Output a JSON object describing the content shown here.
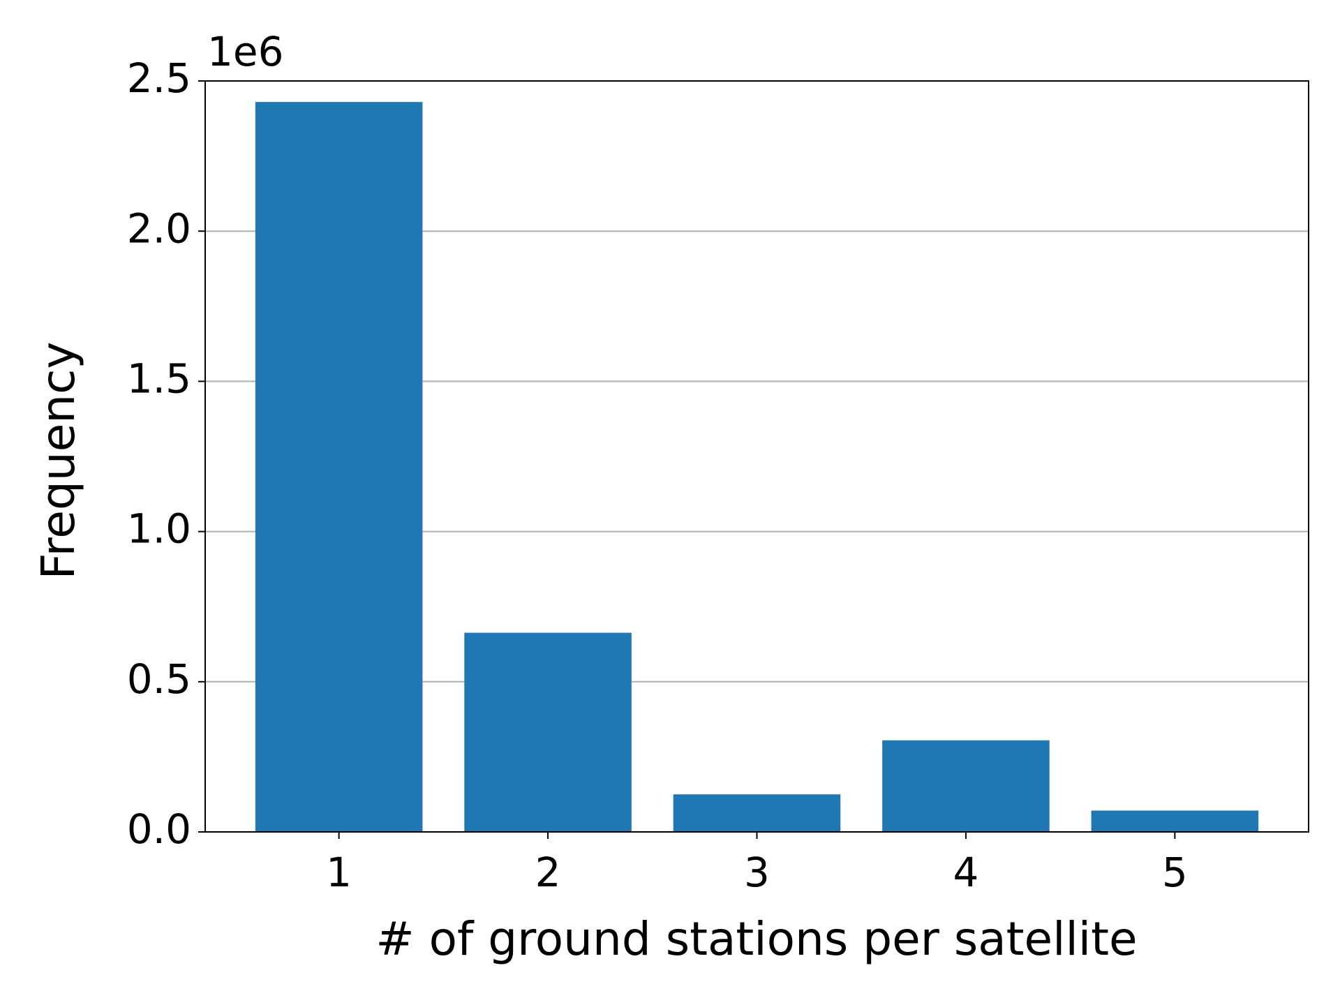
{
  "chart_data": {
    "type": "bar",
    "x_label": "# of ground stations per satellite",
    "y_label": "Frequency",
    "y_offset_label": "1e6",
    "categories": [
      "1",
      "2",
      "3",
      "4",
      "5"
    ],
    "values": [
      2430000,
      663000,
      125000,
      305000,
      71000
    ],
    "color": "#1f77b4",
    "ylim": [
      0,
      2500000
    ],
    "yticks": [
      {
        "value": 0,
        "label": "0.0"
      },
      {
        "value": 500000,
        "label": "0.5"
      },
      {
        "value": 1000000,
        "label": "1.0"
      },
      {
        "value": 1500000,
        "label": "1.5"
      },
      {
        "value": 2000000,
        "label": "2.0"
      },
      {
        "value": 2500000,
        "label": "2.5"
      }
    ],
    "grid": true
  }
}
